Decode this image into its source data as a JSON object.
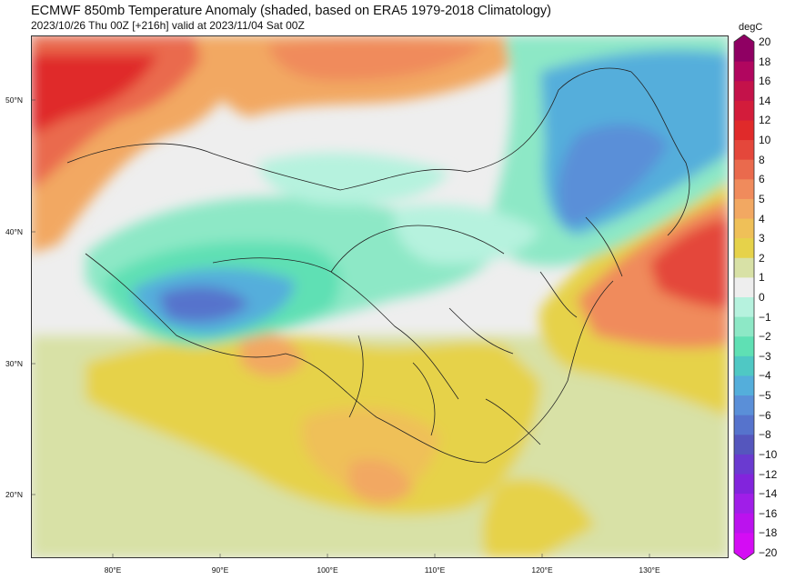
{
  "title": "ECMWF 850mb Temperature Anomaly (shaded, based on ERA5 1979-2018 Climatology)",
  "subtitle": "2023/10/26 Thu 00Z [+216h] valid at 2023/11/04 Sat 00Z",
  "colorbar": {
    "unit": "degC",
    "levels": [
      "20",
      "18",
      "16",
      "14",
      "12",
      "10",
      "8",
      "6",
      "5",
      "4",
      "3",
      "2",
      "1",
      "0",
      "−1",
      "−2",
      "−3",
      "−4",
      "−5",
      "−6",
      "−8",
      "−10",
      "−12",
      "−14",
      "−16",
      "−18",
      "−20"
    ],
    "colors": [
      "#8f0063",
      "#b1065f",
      "#c4124a",
      "#d31c3b",
      "#e02a2a",
      "#e4473b",
      "#ea6a4d",
      "#f08b5c",
      "#f2a862",
      "#efc058",
      "#e6d24a",
      "#d8e1a6",
      "#eeeeee",
      "#b6f2de",
      "#8de8c6",
      "#5fe0b4",
      "#4fc8c4",
      "#54aedb",
      "#5a8fd8",
      "#5673cc",
      "#5556bd",
      "#6a3ad0",
      "#8224dc",
      "#a01ee8",
      "#bb12ee",
      "#d40cf4"
    ]
  },
  "map": {
    "lat_labels": [
      "50°N",
      "40°N",
      "30°N",
      "20°N"
    ],
    "lon_labels": [
      "80°E",
      "90°E",
      "100°E",
      "110°E",
      "120°E",
      "130°E"
    ]
  }
}
